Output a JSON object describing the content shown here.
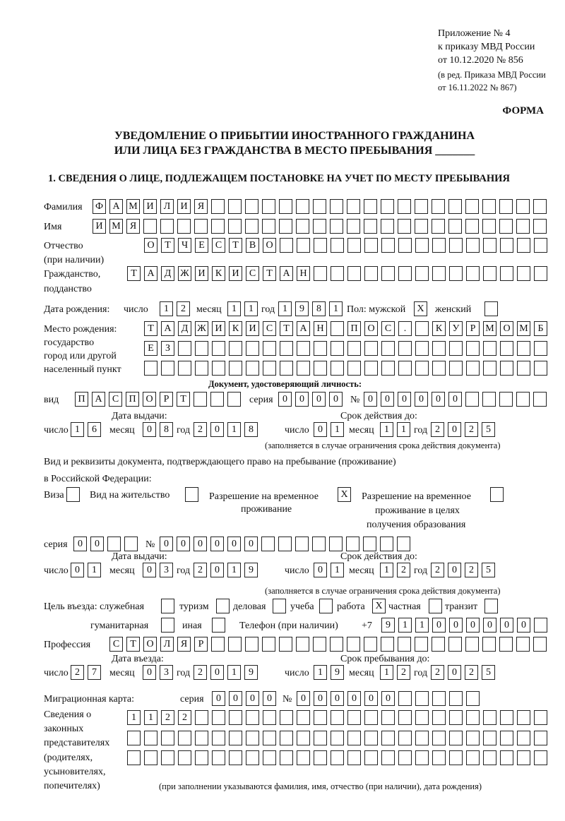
{
  "header": {
    "line1": "Приложение № 4",
    "line2": "к приказу МВД России",
    "line3": "от 10.12.2020 № 856",
    "line4": "(в ред. Приказа МВД России",
    "line5": "от 16.11.2022 № 867)",
    "forma": "ФОРМА",
    "title1": "УВЕДОМЛЕНИЕ О ПРИБЫТИИ ИНОСТРАННОГО ГРАЖДАНИНА",
    "title2": "ИЛИ ЛИЦА БЕЗ ГРАЖДАНСТВА В МЕСТО ПРЕБЫВАНИЯ _______",
    "section1": "1. СВЕДЕНИЯ О ЛИЦЕ, ПОДЛЕЖАЩЕМ ПОСТАНОВКЕ НА УЧЕТ ПО МЕСТУ ПРЕБЫВАНИЯ"
  },
  "labels": {
    "surname": "Фамилия",
    "name": "Имя",
    "patronymic": "Отчество",
    "patronymic2": "(при наличии)",
    "citizenship": "Гражданство,",
    "citizenship2": "подданство",
    "birth_date": "Дата рождения:",
    "day": "число",
    "month": "месяц",
    "year": "год",
    "sex": "Пол: мужской",
    "female": "женский",
    "birthplace1": "Место рождения:",
    "birthplace2": "государство",
    "birthplace3": "город или другой",
    "birthplace4": "населенный пункт",
    "id_doc": "Документ, удостоверяющий личность:",
    "kind": "вид",
    "series": "серия",
    "number": "№",
    "issue_date": "Дата выдачи:",
    "valid_until": "Срок действия до:",
    "valid_note": "(заполняется в случае ограничения срока действия документа)",
    "stay_doc1": "Вид и реквизиты документа, подтверждающего право на пребывание (проживание)",
    "stay_doc2": "в Российской Федерации:",
    "visa": "Виза",
    "residence": "Вид на жительство",
    "trp1": "Разрешение на временное",
    "trp2": "проживание",
    "trpe1": "Разрешение на временное",
    "trpe2": "проживание в целях",
    "trpe3": "получения образования",
    "purpose": "Цель въезда: служебная",
    "tourism": "туризм",
    "business": "деловая",
    "study": "учеба",
    "work": "работа",
    "private": "частная",
    "transit": "транзит",
    "humanitarian": "гуманитарная",
    "other": "иная",
    "phone": "Телефон (при наличии)",
    "phone_prefix": "+7",
    "profession": "Профессия",
    "entry_date": "Дата въезда:",
    "stay_until": "Срок пребывания до:",
    "migration_card": "Миграционная карта:",
    "rep1": "Сведения о",
    "rep2": "законных",
    "rep3": "представителях",
    "rep4": "(родителях,",
    "rep5": "усыновителях,",
    "rep6": "попечителях)",
    "rep_note": "(при заполнении указываются фамилия, имя, отчество (при наличии), дата рождения)"
  },
  "values": {
    "surname": "ФАМИЛИЯ",
    "name": "ИМЯ",
    "patronymic": "ОТЧЕСТВО",
    "citizenship": "ТАДЖИКИСТАН",
    "birth_day": "12",
    "birth_month": "11",
    "birth_year": "1981",
    "sex_male": "X",
    "sex_female": "",
    "birthplace1": "ТАДЖИКИСТАН ПОС. КУРМОМБ",
    "birthplace2": "ЕЗ",
    "birthplace3": "",
    "doc_kind": "ПАСПОРТ",
    "doc_series": "0000",
    "doc_number": "000000",
    "doc_issue_day": "16",
    "doc_issue_month": "08",
    "doc_issue_year": "2018",
    "doc_valid_day": "01",
    "doc_valid_month": "11",
    "doc_valid_year": "2025",
    "visa": "",
    "residence": "",
    "trp": "X",
    "trpe": "",
    "stay_series": "00",
    "stay_number": "000000",
    "stay_issue_day": "01",
    "stay_issue_month": "03",
    "stay_issue_year": "2019",
    "stay_valid_day": "01",
    "stay_valid_month": "12",
    "stay_valid_year": "2025",
    "purpose_official": "",
    "purpose_tourism": "",
    "purpose_business": "",
    "purpose_study": "",
    "purpose_work": "X",
    "purpose_private": "",
    "purpose_transit": "",
    "purpose_humanitarian": "",
    "purpose_other": "",
    "phone": "911000000",
    "profession": "СТОЛЯР",
    "entry_day": "27",
    "entry_month": "03",
    "entry_year": "2019",
    "stay_until_day": "19",
    "stay_until_month": "12",
    "stay_until_year": "2025",
    "mc_series": "0000",
    "mc_number": "000000",
    "rep1": "1122",
    "rep2": "",
    "rep3": ""
  }
}
